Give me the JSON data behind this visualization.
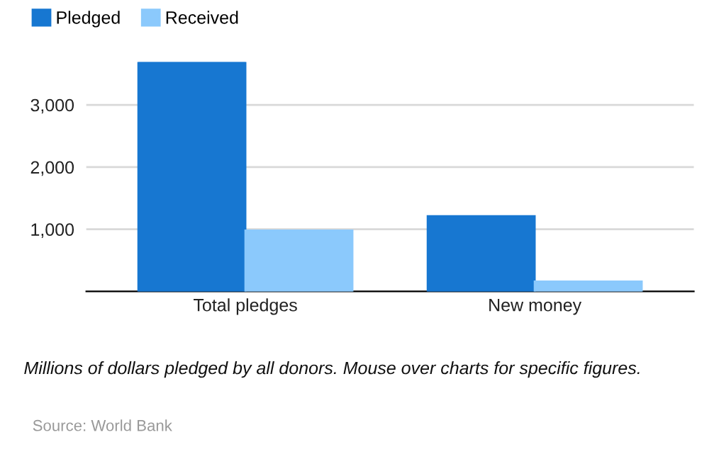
{
  "chart_data": {
    "type": "bar",
    "categories": [
      "Total pledges",
      "New money"
    ],
    "series": [
      {
        "name": "Pledged",
        "color": "#1777d1",
        "values": [
          3690,
          1210
        ]
      },
      {
        "name": "Received",
        "color": "#8bc9fc",
        "values": [
          980,
          160
        ]
      }
    ],
    "ylim": [
      0,
      3690
    ],
    "yticks": [
      {
        "value": 0,
        "label": null
      },
      {
        "value": 1000,
        "label": "1,000"
      },
      {
        "value": 2000,
        "label": "2,000"
      },
      {
        "value": 3000,
        "label": "3,000"
      }
    ],
    "grid": "y",
    "legend": "top left",
    "annotations": [
      "Millions of dollars pledged by all donors. Mouse over charts for specific figures.",
      "Source: World Bank"
    ]
  }
}
